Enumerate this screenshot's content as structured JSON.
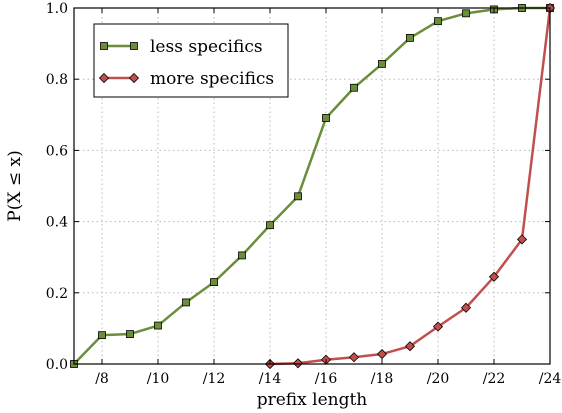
{
  "chart_data": {
    "type": "line",
    "xlabel": "prefix length",
    "ylabel": "P(X ≤ x)",
    "xlim": [
      7,
      24
    ],
    "ylim": [
      0.0,
      1.0
    ],
    "x_ticks": [
      8,
      10,
      12,
      14,
      16,
      18,
      20,
      22,
      24
    ],
    "x_tick_labels": [
      "/8",
      "/10",
      "/12",
      "/14",
      "/16",
      "/18",
      "/20",
      "/22",
      "/24"
    ],
    "y_ticks": [
      0.0,
      0.2,
      0.4,
      0.6,
      0.8,
      1.0
    ],
    "y_tick_labels": [
      "0.0",
      "0.2",
      "0.4",
      "0.6",
      "0.8",
      "1.0"
    ],
    "grid": true,
    "legend_position": "top-left",
    "series": [
      {
        "name": "less specifics",
        "color": "#6b8e3a",
        "marker": "square",
        "x": [
          7,
          8,
          9,
          10,
          11,
          12,
          13,
          14,
          15,
          16,
          17,
          18,
          19,
          20,
          21,
          22,
          23,
          24
        ],
        "y": [
          0.0,
          0.081,
          0.084,
          0.108,
          0.173,
          0.23,
          0.305,
          0.39,
          0.471,
          0.691,
          0.776,
          0.843,
          0.916,
          0.963,
          0.985,
          0.996,
          1.0,
          1.0
        ]
      },
      {
        "name": "more specifics",
        "color": "#c0504d",
        "marker": "diamond",
        "x": [
          14,
          15,
          16,
          17,
          18,
          19,
          20,
          21,
          22,
          23,
          24
        ],
        "y": [
          0.0,
          0.002,
          0.012,
          0.019,
          0.028,
          0.05,
          0.105,
          0.158,
          0.245,
          0.35,
          1.0
        ]
      }
    ]
  }
}
